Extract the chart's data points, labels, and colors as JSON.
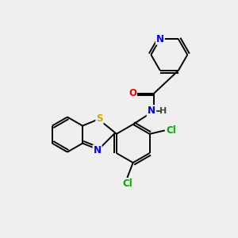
{
  "bg_color": "#efefef",
  "bond_color": "#000000",
  "atom_colors": {
    "N": "#0000ee",
    "O": "#ee0000",
    "S": "#ccaa00",
    "Cl": "#00aa00",
    "C": "#000000",
    "H": "#444444",
    "NH": "#0000cc"
  },
  "font_size": 8.5,
  "lw": 1.4
}
